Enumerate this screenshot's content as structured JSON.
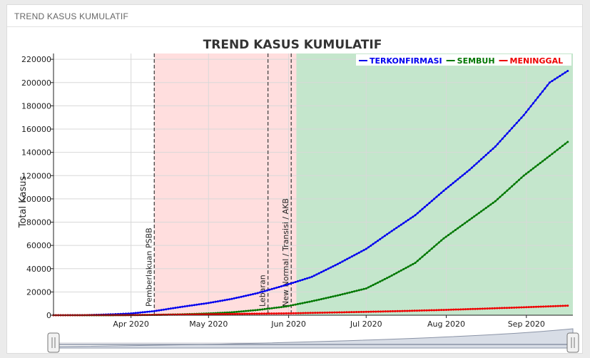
{
  "panel": {
    "title": "TREND KASUS KUMULATIF"
  },
  "chart_data": {
    "type": "line",
    "title": "TREND KASUS KUMULATIF",
    "ylabel": "Total Kasus",
    "xlabel": "",
    "ylim": [
      0,
      225000
    ],
    "xlim": [
      "2020-03-02",
      "2020-09-19"
    ],
    "yticks": [
      0,
      20000,
      40000,
      60000,
      80000,
      100000,
      120000,
      140000,
      160000,
      180000,
      200000,
      220000
    ],
    "xticks": [
      {
        "date": "2020-04-01",
        "label": "Apr 2020"
      },
      {
        "date": "2020-05-01",
        "label": "May 2020"
      },
      {
        "date": "2020-06-01",
        "label": "Jun 2020"
      },
      {
        "date": "2020-07-01",
        "label": "Jul 2020"
      },
      {
        "date": "2020-08-01",
        "label": "Aug 2020"
      },
      {
        "date": "2020-09-01",
        "label": "Sep 2020"
      }
    ],
    "grid": true,
    "legend_position": "top-right",
    "regions": [
      {
        "start": "2020-04-10",
        "end": "2020-06-04",
        "color": "#ffdede"
      },
      {
        "start": "2020-06-04",
        "end": "2020-09-19",
        "color": "#c4e6cc"
      }
    ],
    "events": [
      {
        "date": "2020-04-10",
        "label": "Pemberlakuan PSBB"
      },
      {
        "date": "2020-05-24",
        "label": "Lebaran"
      },
      {
        "date": "2020-06-02",
        "label": "New Normal / Transisi / AKB"
      }
    ],
    "series": [
      {
        "name": "TERKONFIRMASI",
        "color": "#0000ee",
        "points": [
          [
            "2020-03-02",
            0
          ],
          [
            "2020-03-15",
            100
          ],
          [
            "2020-03-25",
            800
          ],
          [
            "2020-04-01",
            1500
          ],
          [
            "2020-04-10",
            3500
          ],
          [
            "2020-04-20",
            7000
          ],
          [
            "2020-05-01",
            10500
          ],
          [
            "2020-05-10",
            14000
          ],
          [
            "2020-05-20",
            19000
          ],
          [
            "2020-05-31",
            26000
          ],
          [
            "2020-06-10",
            33000
          ],
          [
            "2020-06-20",
            44000
          ],
          [
            "2020-07-01",
            57000
          ],
          [
            "2020-07-10",
            71000
          ],
          [
            "2020-07-20",
            86000
          ],
          [
            "2020-07-31",
            107000
          ],
          [
            "2020-08-10",
            125000
          ],
          [
            "2020-08-20",
            145000
          ],
          [
            "2020-08-31",
            172000
          ],
          [
            "2020-09-10",
            200000
          ],
          [
            "2020-09-17",
            210000
          ]
        ]
      },
      {
        "name": "SEMBUH",
        "color": "#007700",
        "points": [
          [
            "2020-03-02",
            0
          ],
          [
            "2020-03-25",
            30
          ],
          [
            "2020-04-10",
            300
          ],
          [
            "2020-04-20",
            700
          ],
          [
            "2020-05-01",
            1500
          ],
          [
            "2020-05-10",
            2500
          ],
          [
            "2020-05-20",
            4500
          ],
          [
            "2020-05-31",
            7500
          ],
          [
            "2020-06-10",
            12000
          ],
          [
            "2020-06-20",
            17000
          ],
          [
            "2020-07-01",
            23000
          ],
          [
            "2020-07-10",
            33000
          ],
          [
            "2020-07-20",
            45000
          ],
          [
            "2020-07-31",
            66000
          ],
          [
            "2020-08-10",
            82000
          ],
          [
            "2020-08-20",
            98000
          ],
          [
            "2020-08-31",
            120000
          ],
          [
            "2020-09-10",
            137000
          ],
          [
            "2020-09-17",
            149000
          ]
        ]
      },
      {
        "name": "MENINGGAL",
        "color": "#ee0000",
        "points": [
          [
            "2020-03-02",
            0
          ],
          [
            "2020-04-01",
            100
          ],
          [
            "2020-04-15",
            400
          ],
          [
            "2020-05-01",
            800
          ],
          [
            "2020-05-15",
            1200
          ],
          [
            "2020-06-01",
            1600
          ],
          [
            "2020-06-15",
            2200
          ],
          [
            "2020-07-01",
            2900
          ],
          [
            "2020-07-15",
            3600
          ],
          [
            "2020-08-01",
            4600
          ],
          [
            "2020-08-15",
            5600
          ],
          [
            "2020-09-01",
            6900
          ],
          [
            "2020-09-17",
            8200
          ]
        ]
      }
    ]
  }
}
